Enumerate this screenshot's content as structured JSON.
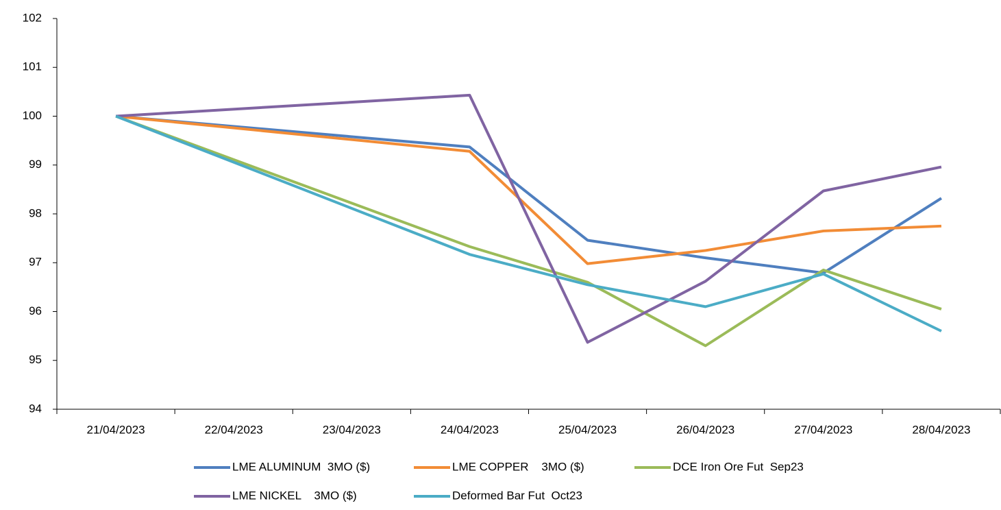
{
  "chart_data": {
    "type": "line",
    "categories": [
      "21/04/2023",
      "22/04/2023",
      "23/04/2023",
      "24/04/2023",
      "25/04/2023",
      "26/04/2023",
      "27/04/2023",
      "28/04/2023"
    ],
    "x": [
      "21/04/2023",
      "24/04/2023",
      "25/04/2023",
      "26/04/2023",
      "27/04/2023",
      "28/04/2023"
    ],
    "series": [
      {
        "name": "LME ALUMINUM  3MO ($)",
        "color": "#4f7fbf",
        "values": [
          100,
          99.37,
          97.46,
          97.1,
          96.79,
          98.32
        ]
      },
      {
        "name": "LME COPPER    3MO ($)",
        "color": "#f28c36",
        "values": [
          100,
          99.28,
          96.98,
          97.25,
          97.65,
          97.75
        ]
      },
      {
        "name": "DCE Iron Ore Fut  Sep23",
        "color": "#9bbb59",
        "values": [
          100,
          97.33,
          96.6,
          95.3,
          96.85,
          96.05
        ]
      },
      {
        "name": "LME NICKEL    3MO ($)",
        "color": "#8064a2",
        "values": [
          100,
          100.43,
          95.37,
          96.62,
          98.47,
          98.96
        ]
      },
      {
        "name": "Deformed Bar Fut  Oct23",
        "color": "#4bacc6",
        "values": [
          100,
          97.17,
          96.55,
          96.1,
          96.77,
          95.6
        ]
      }
    ],
    "ylim": [
      94,
      102
    ],
    "yticks": [
      94,
      95,
      96,
      97,
      98,
      99,
      100,
      101,
      102
    ],
    "grid": false
  }
}
